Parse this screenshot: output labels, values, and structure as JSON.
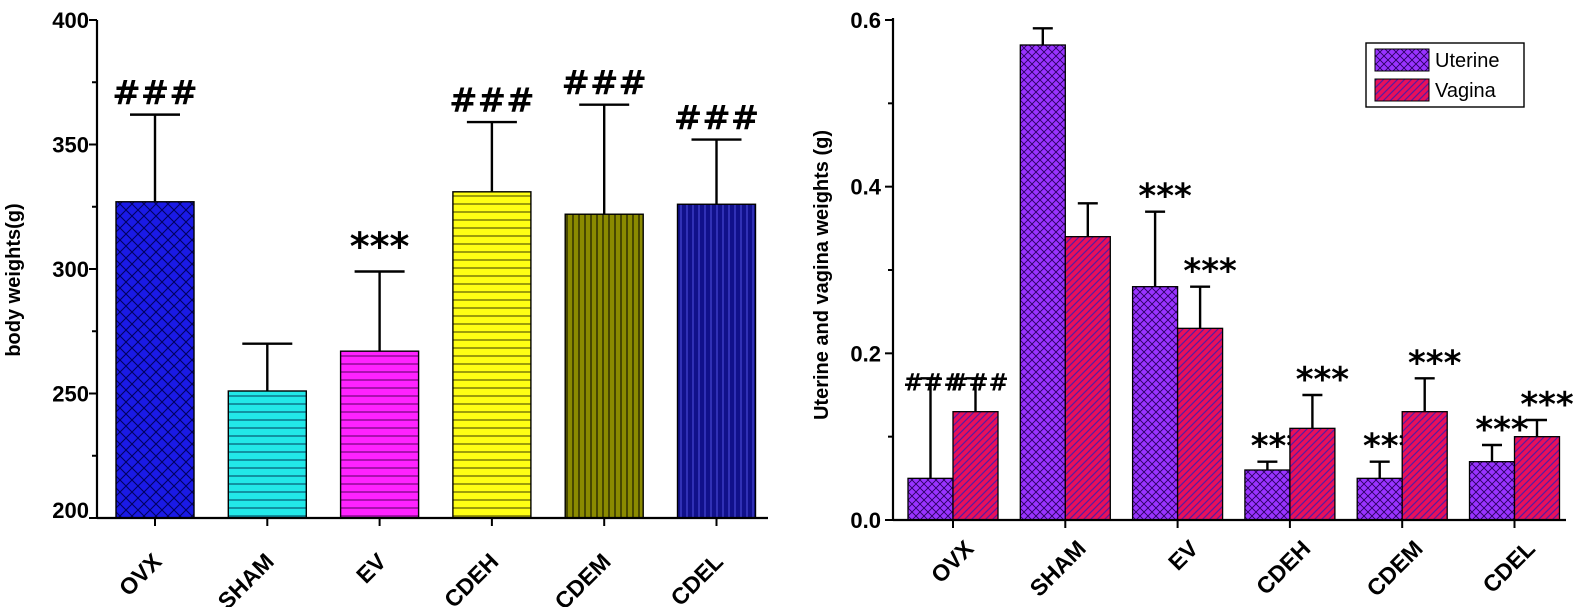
{
  "chart_data": [
    {
      "type": "bar",
      "title": "",
      "xlabel": "",
      "ylabel": "body weights(g)",
      "ylim": [
        200,
        400
      ],
      "yticks": [
        200,
        250,
        300,
        350,
        400
      ],
      "categories": [
        "OVX",
        "SHAM",
        "EV",
        "CDEH",
        "CDEM",
        "CDEL"
      ],
      "values": [
        327,
        251,
        267,
        331,
        322,
        326
      ],
      "errors": [
        35,
        19,
        32,
        28,
        44,
        26
      ],
      "annotations": [
        "###",
        "",
        "***",
        "###",
        "###",
        "###"
      ],
      "colors": [
        "#1a1ae6",
        "#22e8e8",
        "#ff22ff",
        "#ffff14",
        "#8a8a00",
        "#10108a"
      ],
      "patterns": [
        "crosshatch",
        "horizontal",
        "horizontal",
        "horizontal",
        "vertical",
        "vertical"
      ],
      "grid": false
    },
    {
      "type": "bar",
      "title": "",
      "xlabel": "",
      "ylabel": "Uterine and vagina weights (g)",
      "ylim": [
        0,
        0.6
      ],
      "yticks": [
        "0.0",
        "0.2",
        "0.4",
        "0.6"
      ],
      "categories": [
        "OVX",
        "SHAM",
        "EV",
        "CDEH",
        "CDEM",
        "CDEL"
      ],
      "series": [
        {
          "name": "Uterine",
          "color": "#9933ff",
          "pattern": "crosshatch",
          "values": [
            0.05,
            0.57,
            0.28,
            0.06,
            0.05,
            0.07
          ],
          "errors": [
            0.12,
            0.02,
            0.09,
            0.01,
            0.02,
            0.02
          ],
          "annotations": [
            "###",
            "",
            "***",
            "***",
            "***",
            "***"
          ]
        },
        {
          "name": "Vagina",
          "color": "#e8105a",
          "pattern": "diagonal",
          "values": [
            0.13,
            0.34,
            0.23,
            0.11,
            0.13,
            0.1
          ],
          "errors": [
            0.04,
            0.04,
            0.05,
            0.04,
            0.04,
            0.02
          ],
          "annotations": [
            "###",
            "",
            "***",
            "***",
            "***",
            "***"
          ]
        }
      ],
      "legend": "top-right",
      "grid": false
    }
  ]
}
